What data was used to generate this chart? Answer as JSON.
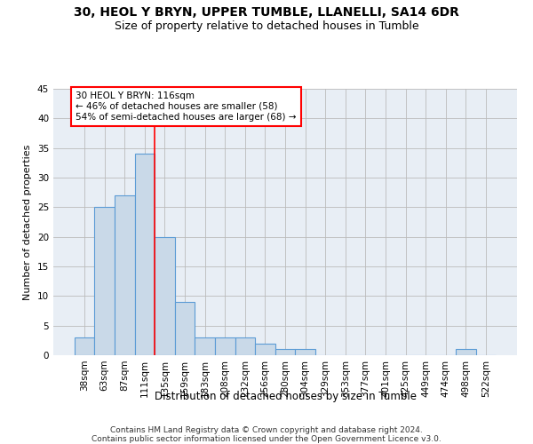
{
  "title_line1": "30, HEOL Y BRYN, UPPER TUMBLE, LLANELLI, SA14 6DR",
  "title_line2": "Size of property relative to detached houses in Tumble",
  "xlabel": "Distribution of detached houses by size in Tumble",
  "ylabel": "Number of detached properties",
  "categories": [
    "38sqm",
    "63sqm",
    "87sqm",
    "111sqm",
    "135sqm",
    "159sqm",
    "183sqm",
    "208sqm",
    "232sqm",
    "256sqm",
    "280sqm",
    "304sqm",
    "329sqm",
    "353sqm",
    "377sqm",
    "401sqm",
    "425sqm",
    "449sqm",
    "474sqm",
    "498sqm",
    "522sqm"
  ],
  "values": [
    3,
    25,
    27,
    34,
    20,
    9,
    3,
    3,
    3,
    2,
    1,
    1,
    0,
    0,
    0,
    0,
    0,
    0,
    0,
    1,
    0
  ],
  "bar_color": "#c9d9e8",
  "bar_edge_color": "#5b9bd5",
  "bar_edge_width": 0.8,
  "vline_x": 3.5,
  "vline_color": "red",
  "annotation_line1": "30 HEOL Y BRYN: 116sqm",
  "annotation_line2": "← 46% of detached houses are smaller (58)",
  "annotation_line3": "54% of semi-detached houses are larger (68) →",
  "annotation_box_color": "white",
  "annotation_box_edge_color": "red",
  "annotation_fontsize": 7.5,
  "ylim": [
    0,
    45
  ],
  "yticks": [
    0,
    5,
    10,
    15,
    20,
    25,
    30,
    35,
    40,
    45
  ],
  "grid_color": "#bbbbbb",
  "background_color": "#e8eef5",
  "footer": "Contains HM Land Registry data © Crown copyright and database right 2024.\nContains public sector information licensed under the Open Government Licence v3.0.",
  "title_fontsize": 10,
  "subtitle_fontsize": 9,
  "xlabel_fontsize": 8.5,
  "ylabel_fontsize": 8,
  "tick_fontsize": 7.5,
  "footer_fontsize": 6.5
}
